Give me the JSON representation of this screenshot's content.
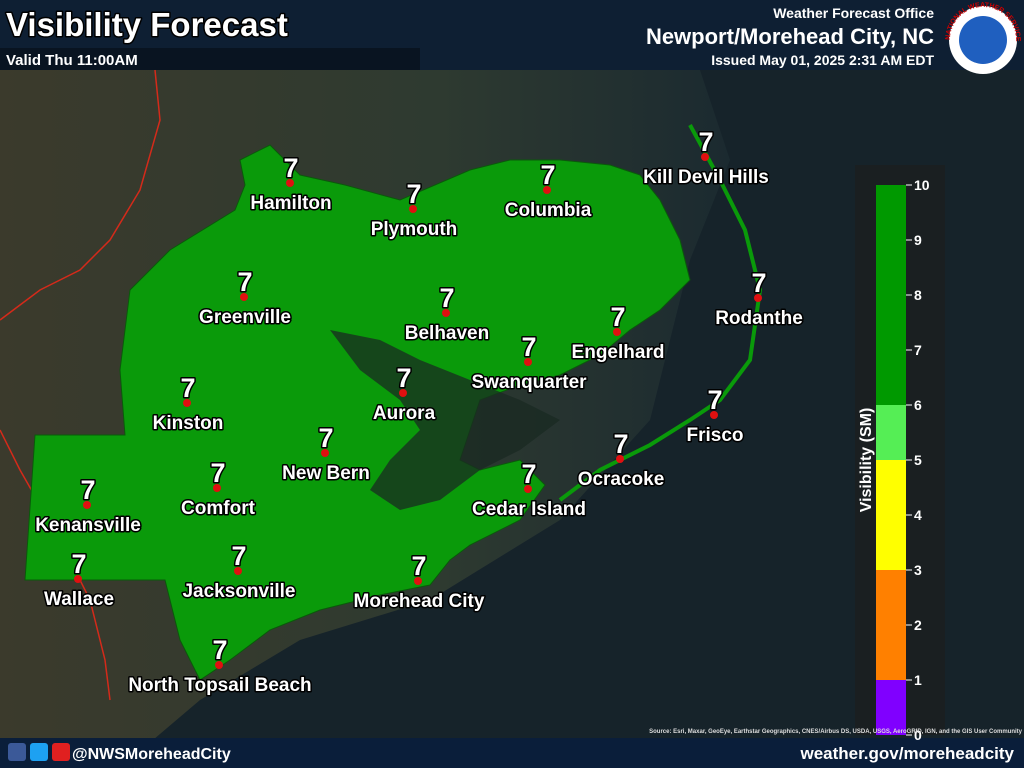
{
  "header": {
    "title": "Visibility Forecast",
    "valid": "Valid Thu 11:00AM",
    "office_label": "Weather Forecast Office",
    "office": "Newport/Morehead City, NC",
    "issued": "Issued May 01, 2025 2:31 AM EDT",
    "logo_text": "NATIONAL WEATHER SERVICE"
  },
  "cities": [
    {
      "name": "Hamilton",
      "value": 7
    },
    {
      "name": "Plymouth",
      "value": 7
    },
    {
      "name": "Columbia",
      "value": 7
    },
    {
      "name": "Kill Devil Hills",
      "value": 7
    },
    {
      "name": "Greenville",
      "value": 7
    },
    {
      "name": "Belhaven",
      "value": 7
    },
    {
      "name": "Rodanthe",
      "value": 7
    },
    {
      "name": "Engelhard",
      "value": 7
    },
    {
      "name": "Swanquarter",
      "value": 7
    },
    {
      "name": "Aurora",
      "value": 7
    },
    {
      "name": "Kinston",
      "value": 7
    },
    {
      "name": "Frisco",
      "value": 7
    },
    {
      "name": "New Bern",
      "value": 7
    },
    {
      "name": "Ocracoke",
      "value": 7
    },
    {
      "name": "Comfort",
      "value": 7
    },
    {
      "name": "Kenansville",
      "value": 7
    },
    {
      "name": "Cedar Island",
      "value": 7
    },
    {
      "name": "Jacksonville",
      "value": 7
    },
    {
      "name": "Wallace",
      "value": 7
    },
    {
      "name": "Morehead City",
      "value": 7
    },
    {
      "name": "North Topsail Beach",
      "value": 7
    }
  ],
  "legend": {
    "label": "Visibility (SM)",
    "ticks": [
      0,
      1,
      2,
      3,
      4,
      5,
      6,
      7,
      8,
      9,
      10
    ],
    "range": [
      0,
      10
    ],
    "bins": [
      {
        "from": 0,
        "to": 1,
        "color": "#8000ff"
      },
      {
        "from": 1,
        "to": 3,
        "color": "#ff8000"
      },
      {
        "from": 3,
        "to": 5,
        "color": "#ffff00"
      },
      {
        "from": 5,
        "to": 6,
        "color": "#55ee55"
      },
      {
        "from": 6,
        "to": 10,
        "color": "#009900"
      }
    ]
  },
  "footer": {
    "social": "@NWSMoreheadCity",
    "url": "weather.gov/moreheadcity",
    "source": "Source: Esri, Maxar, GeoEye, Earthstar Geographics, CNES/Airbus DS, USDA, USGS, AeroGRID, IGN, and the GIS User Community"
  }
}
